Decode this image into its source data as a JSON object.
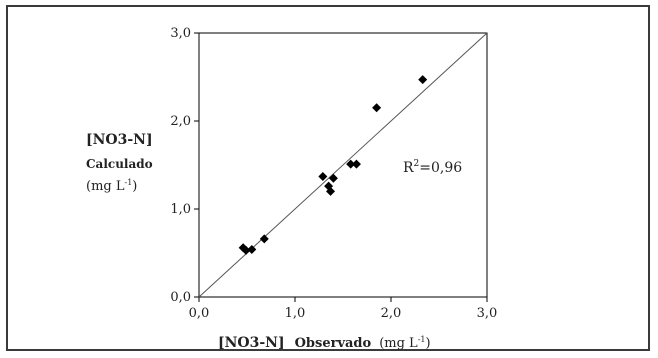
{
  "chart_data": {
    "type": "scatter",
    "title": "",
    "xlim": [
      0,
      3
    ],
    "ylim": [
      0,
      3
    ],
    "x_ticks": [
      "0,0",
      "1,0",
      "2,0",
      "3,0"
    ],
    "y_ticks": [
      "0,0",
      "1,0",
      "2,0",
      "3,0"
    ],
    "xlabel": {
      "name": "[NO3-N]",
      "descriptor": "Observado",
      "unit_prefix": "(mg L",
      "unit_exp": "-1",
      "unit_suffix": ")"
    },
    "ylabel": {
      "name": "[NO3-N]",
      "descriptor": "Calculado",
      "unit_prefix": "(mg L",
      "unit_exp": "-1",
      "unit_suffix": ")"
    },
    "annotation": {
      "prefix": "R",
      "exp": "2",
      "suffix": "=0,96"
    },
    "reference_line": {
      "type": "1:1",
      "from": [
        0,
        0
      ],
      "to": [
        3,
        3
      ]
    },
    "grid": false,
    "points": [
      {
        "x": 0.46,
        "y": 0.56
      },
      {
        "x": 0.49,
        "y": 0.53
      },
      {
        "x": 0.55,
        "y": 0.54
      },
      {
        "x": 0.68,
        "y": 0.66
      },
      {
        "x": 1.29,
        "y": 1.37
      },
      {
        "x": 1.35,
        "y": 1.26
      },
      {
        "x": 1.37,
        "y": 1.2
      },
      {
        "x": 1.4,
        "y": 1.35
      },
      {
        "x": 1.58,
        "y": 1.51
      },
      {
        "x": 1.64,
        "y": 1.51
      },
      {
        "x": 1.85,
        "y": 2.15
      },
      {
        "x": 2.33,
        "y": 2.47
      }
    ],
    "marker_color": "#000000",
    "line_color": "#555555"
  }
}
